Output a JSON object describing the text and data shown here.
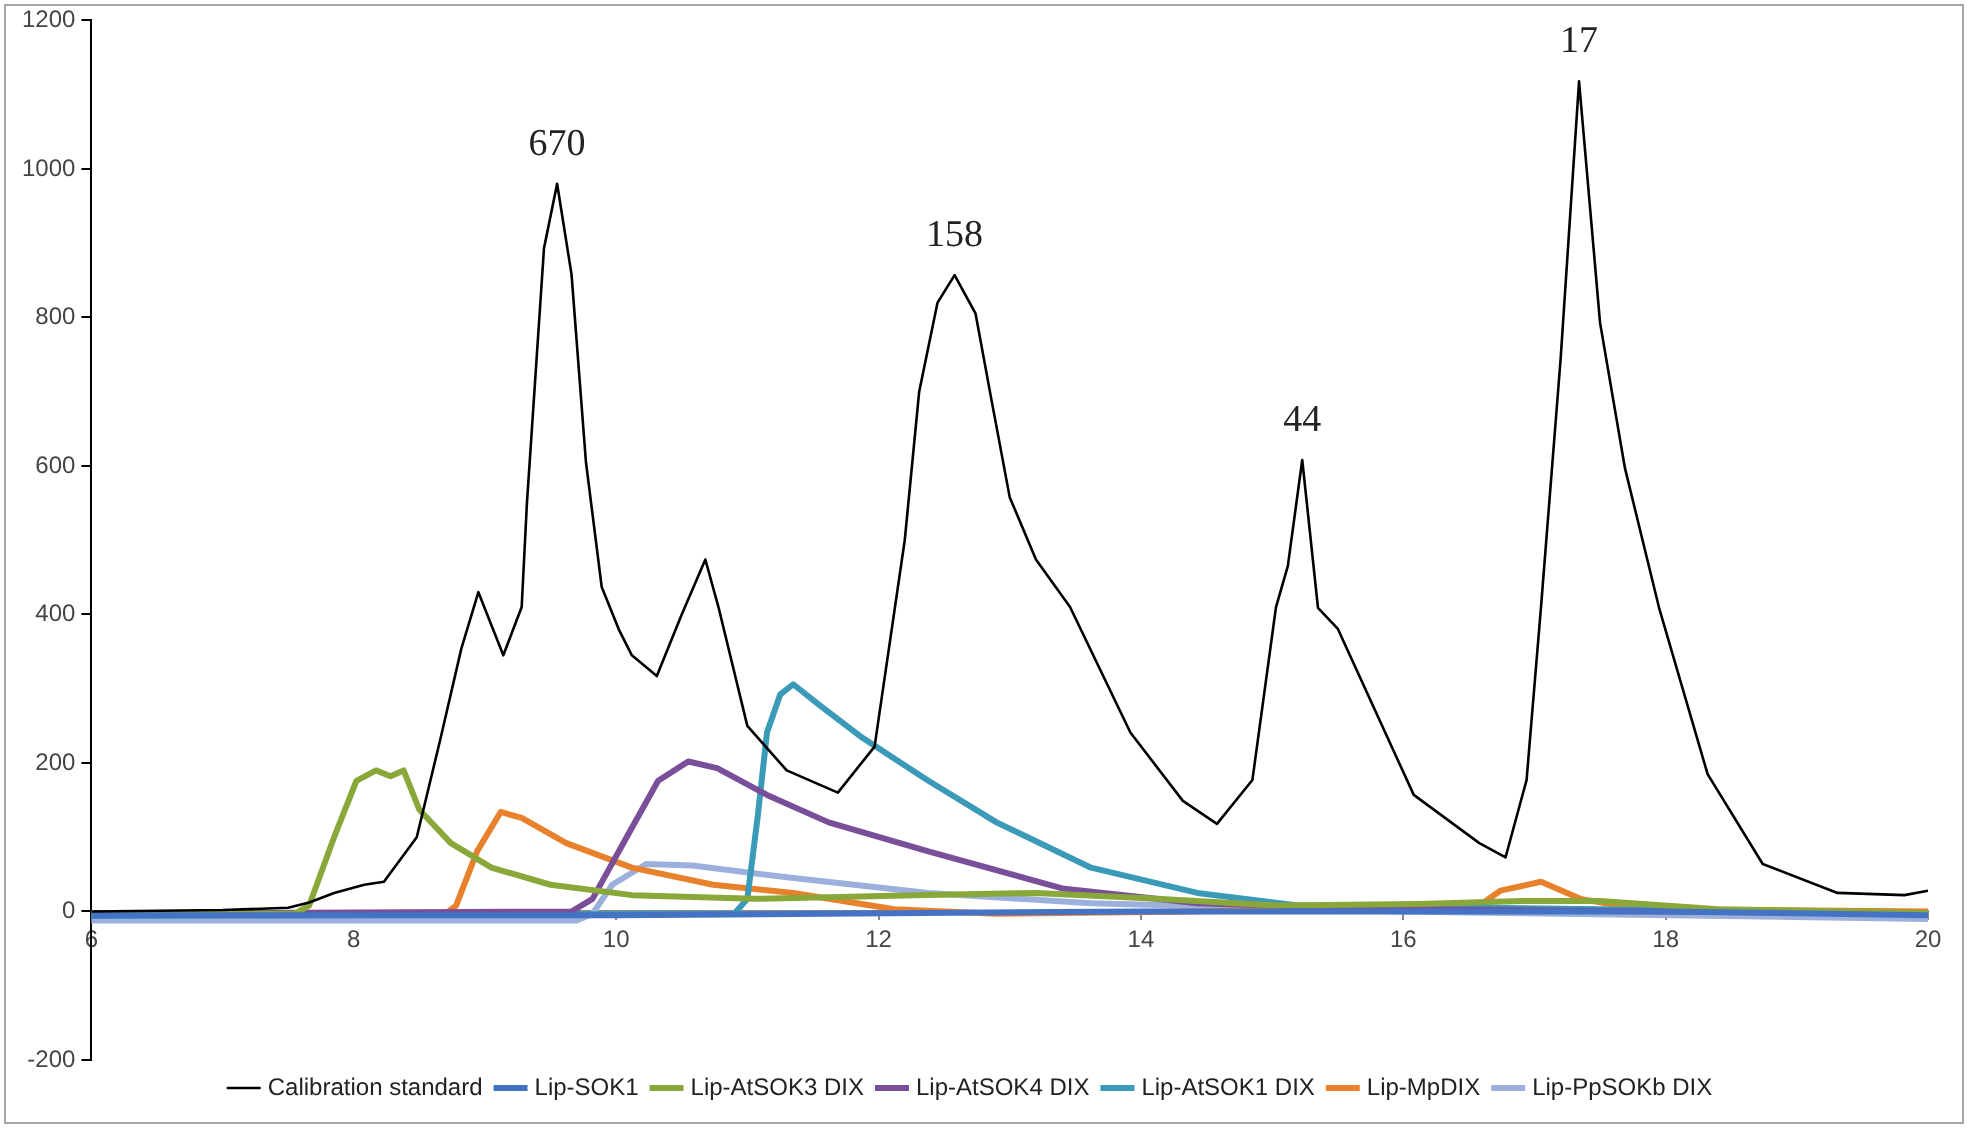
{
  "chart_data": {
    "type": "line",
    "xlim": [
      6,
      20
    ],
    "xticks": [
      6,
      8,
      10,
      12,
      14,
      16,
      18,
      20
    ],
    "ylim": [
      -200,
      1200
    ],
    "yticks": [
      -200,
      0,
      200,
      400,
      600,
      800,
      1000,
      1200
    ],
    "grid": false,
    "legend": "bottom",
    "marker": "none",
    "line_style": "solid",
    "annotations": [
      {
        "text": "670",
        "x": 9.55,
        "y": 980
      },
      {
        "text": "158",
        "x": 12.58,
        "y": 857
      },
      {
        "text": "44",
        "x": 15.23,
        "y": 608
      },
      {
        "text": "17",
        "x": 17.34,
        "y": 1118
      }
    ],
    "series": [
      {
        "name": "Calibration standard",
        "color": "#000000",
        "x": [
          6,
          7,
          7.5,
          7.66,
          7.85,
          8.08,
          8.23,
          8.48,
          8.66,
          8.82,
          8.95,
          9.14,
          9.28,
          9.32,
          9.45,
          9.55,
          9.66,
          9.77,
          9.89,
          10.02,
          10.12,
          10.31,
          10.5,
          10.68,
          10.78,
          11.0,
          11.3,
          11.69,
          11.97,
          12.2,
          12.31,
          12.45,
          12.58,
          12.74,
          12.86,
          13.0,
          13.2,
          13.46,
          13.92,
          14.32,
          14.58,
          14.85,
          15.03,
          15.12,
          15.23,
          15.35,
          15.5,
          16.08,
          16.58,
          16.78,
          16.94,
          17.05,
          17.2,
          17.34,
          17.5,
          17.69,
          17.95,
          18.32,
          18.74,
          19.31,
          19.82,
          20
        ],
        "values": [
          0,
          2,
          5,
          12,
          25,
          36,
          40,
          100,
          232,
          354,
          430,
          345,
          410,
          550,
          893,
          980,
          858,
          605,
          437,
          380,
          345,
          317,
          400,
          474,
          410,
          250,
          190,
          160,
          222,
          500,
          700,
          820,
          857,
          805,
          690,
          558,
          474,
          410,
          241,
          149,
          118,
          177,
          410,
          465,
          608,
          409,
          381,
          157,
          92,
          73,
          177,
          410,
          745,
          1118,
          793,
          597,
          409,
          185,
          64,
          25,
          22,
          28
        ]
      },
      {
        "name": "Lip-SOK1",
        "color": "#4472c4",
        "x": [
          6,
          10,
          14,
          18,
          20
        ],
        "values": [
          -5,
          -5,
          0,
          0,
          -5
        ]
      },
      {
        "name": "Lip-AtSOK3 DIX",
        "color": "#8aa83a",
        "x": [
          6,
          7.55,
          7.66,
          7.85,
          8.02,
          8.17,
          8.28,
          8.38,
          8.5,
          8.74,
          9.05,
          9.5,
          10.12,
          11.05,
          12.28,
          13.2,
          14.12,
          15.05,
          16.12,
          16.9,
          17.5,
          18.4,
          20
        ],
        "values": [
          -3,
          -3,
          8,
          100,
          176,
          190,
          182,
          190,
          137,
          92,
          59,
          36,
          22,
          17,
          22,
          25,
          17,
          8,
          10,
          14,
          14,
          3,
          -2
        ]
      },
      {
        "name": "Lip-AtSOK4 DIX",
        "color": "#7a4f9a",
        "x": [
          6,
          9.66,
          9.82,
          10.08,
          10.32,
          10.55,
          10.77,
          11.15,
          11.62,
          12.38,
          13.4,
          14.43,
          15.97,
          20
        ],
        "values": [
          -3,
          0,
          17,
          100,
          176,
          202,
          193,
          157,
          120,
          81,
          31,
          11,
          3,
          -3
        ]
      },
      {
        "name": "Lip-AtSOK1 DIX",
        "color": "#3a9ab8",
        "x": [
          6,
          10.9,
          11.0,
          11.08,
          11.15,
          11.25,
          11.35,
          11.55,
          11.86,
          12.38,
          12.9,
          13.62,
          14.43,
          15.2,
          17.5,
          20
        ],
        "values": [
          -6,
          -3,
          17,
          129,
          241,
          292,
          306,
          278,
          236,
          176,
          120,
          59,
          25,
          8,
          3,
          -3
        ]
      },
      {
        "name": "Lip-MpDIX",
        "color": "#e8812c",
        "x": [
          6,
          8.7,
          8.78,
          8.94,
          9.12,
          9.28,
          9.62,
          10.12,
          10.74,
          11.35,
          12.12,
          12.9,
          14.4,
          16.58,
          16.74,
          17.05,
          17.35,
          17.8,
          20
        ],
        "values": [
          -3,
          -3,
          8,
          81,
          134,
          126,
          92,
          59,
          36,
          25,
          3,
          -3,
          0,
          8,
          28,
          40,
          17,
          3,
          0
        ]
      },
      {
        "name": "Lip-PpSOKb DIX",
        "color": "#9bb0dc",
        "x": [
          6,
          9.7,
          9.82,
          9.97,
          10.23,
          10.58,
          11.35,
          12.38,
          13.62,
          15.97,
          20
        ],
        "values": [
          -12,
          -12,
          -3,
          36,
          64,
          62,
          45,
          25,
          11,
          0,
          -10
        ]
      }
    ]
  }
}
